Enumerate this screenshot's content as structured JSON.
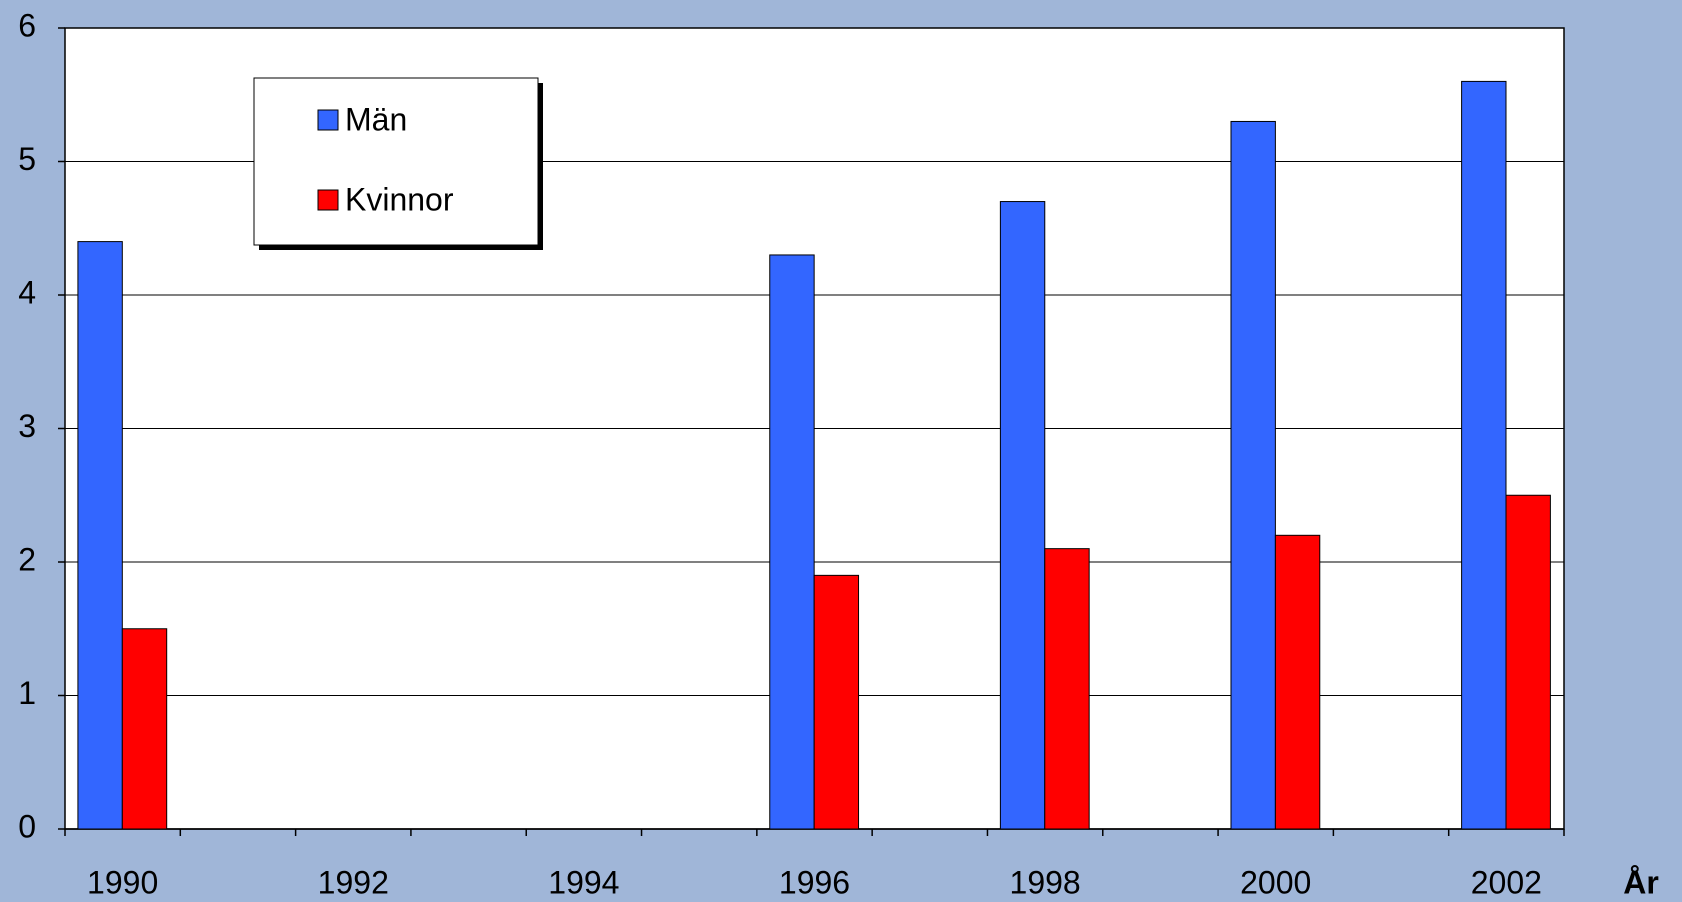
{
  "chart_data": {
    "type": "bar",
    "categories": [
      1990,
      null,
      1992,
      null,
      1994,
      null,
      1996,
      null,
      1998,
      null,
      2000,
      null,
      2002
    ],
    "x_label": "År",
    "series": [
      {
        "name": "Män",
        "color": "#3366ff",
        "values": [
          4.4,
          null,
          null,
          null,
          null,
          null,
          4.3,
          null,
          4.7,
          null,
          5.3,
          null,
          5.6
        ]
      },
      {
        "name": "Kvinnor",
        "color": "#ff0000",
        "values": [
          1.5,
          null,
          null,
          null,
          null,
          null,
          1.9,
          null,
          2.1,
          null,
          2.2,
          null,
          2.5
        ]
      }
    ],
    "ylim": [
      0,
      6
    ],
    "yticks": [
      0,
      1,
      2,
      3,
      4,
      5,
      6
    ],
    "grid": true,
    "legend": "top-left"
  }
}
